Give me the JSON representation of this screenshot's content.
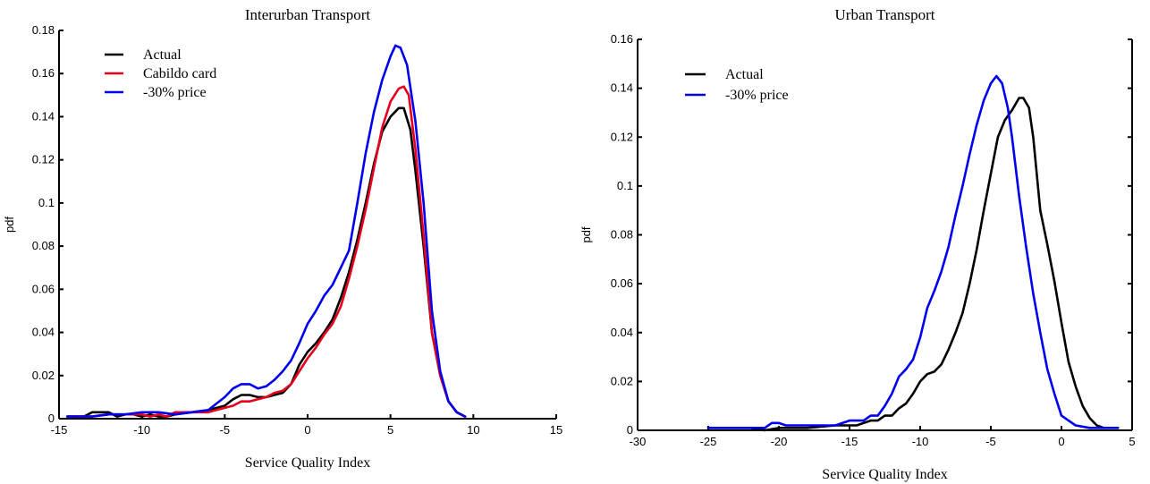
{
  "chart_data": [
    {
      "type": "line",
      "title": "Interurban Transport",
      "xlabel": "Service Quality Index",
      "ylabel": "pdf",
      "xlim": [
        -15,
        15
      ],
      "ylim": [
        0,
        0.18
      ],
      "x_ticks": [
        "-15",
        "-10",
        "-5",
        "0",
        "5",
        "10",
        "15"
      ],
      "y_ticks": [
        "0",
        "0.02",
        "0.04",
        "0.06",
        "0.08",
        "0.1",
        "0.12",
        "0.14",
        "0.16",
        "0.18"
      ],
      "grid": false,
      "legend_position": "top-left",
      "series": [
        {
          "name": "Actual",
          "color": "#000000",
          "points": [
            [
              -14.5,
              0.001
            ],
            [
              -13.5,
              0.001
            ],
            [
              -13,
              0.003
            ],
            [
              -12,
              0.003
            ],
            [
              -11.5,
              0.001
            ],
            [
              -11,
              0.002
            ],
            [
              -10.5,
              0.002
            ],
            [
              -10,
              0.001
            ],
            [
              -9.5,
              0.002
            ],
            [
              -9,
              0.001
            ],
            [
              -8.5,
              0.001
            ],
            [
              -8,
              0.002
            ],
            [
              -7,
              0.003
            ],
            [
              -6,
              0.004
            ],
            [
              -5,
              0.006
            ],
            [
              -4.5,
              0.009
            ],
            [
              -4,
              0.011
            ],
            [
              -3.5,
              0.011
            ],
            [
              -3,
              0.01
            ],
            [
              -2.5,
              0.01
            ],
            [
              -2,
              0.011
            ],
            [
              -1.5,
              0.012
            ],
            [
              -1,
              0.016
            ],
            [
              -0.5,
              0.025
            ],
            [
              0,
              0.031
            ],
            [
              0.5,
              0.035
            ],
            [
              1,
              0.04
            ],
            [
              1.5,
              0.046
            ],
            [
              2,
              0.056
            ],
            [
              2.5,
              0.068
            ],
            [
              3,
              0.083
            ],
            [
              3.5,
              0.1
            ],
            [
              4,
              0.118
            ],
            [
              4.5,
              0.133
            ],
            [
              5,
              0.14
            ],
            [
              5.5,
              0.144
            ],
            [
              5.8,
              0.144
            ],
            [
              6.2,
              0.134
            ],
            [
              6.5,
              0.115
            ],
            [
              7,
              0.08
            ],
            [
              7.5,
              0.04
            ],
            [
              8,
              0.02
            ],
            [
              8.5,
              0.008
            ],
            [
              9,
              0.003
            ],
            [
              9.5,
              0.001
            ]
          ]
        },
        {
          "name": "Cabildo card",
          "color": "#e8001c",
          "points": [
            [
              -14.5,
              0.001
            ],
            [
              -13,
              0.001
            ],
            [
              -12,
              0.002
            ],
            [
              -11,
              0.002
            ],
            [
              -10,
              0.002
            ],
            [
              -9.5,
              0.001
            ],
            [
              -9,
              0.002
            ],
            [
              -8.5,
              0.001
            ],
            [
              -8,
              0.003
            ],
            [
              -7,
              0.003
            ],
            [
              -6,
              0.003
            ],
            [
              -5,
              0.005
            ],
            [
              -4.5,
              0.006
            ],
            [
              -4,
              0.008
            ],
            [
              -3.5,
              0.008
            ],
            [
              -3,
              0.009
            ],
            [
              -2.5,
              0.01
            ],
            [
              -2,
              0.012
            ],
            [
              -1.5,
              0.013
            ],
            [
              -1,
              0.016
            ],
            [
              -0.5,
              0.022
            ],
            [
              0,
              0.028
            ],
            [
              0.5,
              0.033
            ],
            [
              1,
              0.039
            ],
            [
              1.5,
              0.044
            ],
            [
              2,
              0.052
            ],
            [
              2.5,
              0.065
            ],
            [
              3,
              0.08
            ],
            [
              3.5,
              0.097
            ],
            [
              4,
              0.116
            ],
            [
              4.5,
              0.135
            ],
            [
              5,
              0.147
            ],
            [
              5.5,
              0.153
            ],
            [
              5.8,
              0.154
            ],
            [
              6.1,
              0.15
            ],
            [
              6.5,
              0.125
            ],
            [
              7,
              0.085
            ],
            [
              7.5,
              0.04
            ],
            [
              8,
              0.02
            ],
            [
              8.5,
              0.008
            ],
            [
              9,
              0.003
            ],
            [
              9.5,
              0.001
            ]
          ]
        },
        {
          "name": "-30% price",
          "color": "#0000ee",
          "points": [
            [
              -14.5,
              0.001
            ],
            [
              -13,
              0.001
            ],
            [
              -12,
              0.002
            ],
            [
              -11,
              0.002
            ],
            [
              -10,
              0.003
            ],
            [
              -9,
              0.003
            ],
            [
              -8,
              0.002
            ],
            [
              -7,
              0.003
            ],
            [
              -6,
              0.004
            ],
            [
              -5.5,
              0.007
            ],
            [
              -5,
              0.01
            ],
            [
              -4.5,
              0.014
            ],
            [
              -4,
              0.016
            ],
            [
              -3.5,
              0.016
            ],
            [
              -3,
              0.014
            ],
            [
              -2.5,
              0.015
            ],
            [
              -2,
              0.018
            ],
            [
              -1.5,
              0.022
            ],
            [
              -1,
              0.027
            ],
            [
              -0.5,
              0.035
            ],
            [
              0,
              0.044
            ],
            [
              0.5,
              0.05
            ],
            [
              1,
              0.057
            ],
            [
              1.5,
              0.062
            ],
            [
              2,
              0.07
            ],
            [
              2.5,
              0.078
            ],
            [
              3,
              0.1
            ],
            [
              3.5,
              0.123
            ],
            [
              4,
              0.142
            ],
            [
              4.5,
              0.157
            ],
            [
              5,
              0.168
            ],
            [
              5.3,
              0.173
            ],
            [
              5.6,
              0.172
            ],
            [
              6,
              0.164
            ],
            [
              6.5,
              0.138
            ],
            [
              7,
              0.1
            ],
            [
              7.5,
              0.05
            ],
            [
              8,
              0.022
            ],
            [
              8.5,
              0.008
            ],
            [
              9,
              0.003
            ],
            [
              9.5,
              0.001
            ]
          ]
        }
      ]
    },
    {
      "type": "line",
      "title": "Urban Transport",
      "xlabel": "Service Quality Index",
      "ylabel": "pdf",
      "xlim": [
        -30,
        5
      ],
      "ylim": [
        0,
        0.16
      ],
      "x_ticks": [
        "-30",
        "-25",
        "-20",
        "-15",
        "-10",
        "-5",
        "0",
        "5"
      ],
      "y_ticks": [
        "0",
        "0.02",
        "0.04",
        "0.06",
        "0.08",
        "0.1",
        "0.12",
        "0.14",
        "0.16"
      ],
      "grid": false,
      "legend_position": "top-left",
      "series": [
        {
          "name": "Actual",
          "color": "#000000",
          "points": [
            [
              -25,
              0.001
            ],
            [
              -22,
              0.001
            ],
            [
              -21,
              0
            ],
            [
              -20,
              0.001
            ],
            [
              -18,
              0.001
            ],
            [
              -16,
              0.002
            ],
            [
              -14.5,
              0.002
            ],
            [
              -13.5,
              0.004
            ],
            [
              -13,
              0.004
            ],
            [
              -12.5,
              0.006
            ],
            [
              -12,
              0.006
            ],
            [
              -11.5,
              0.009
            ],
            [
              -11,
              0.011
            ],
            [
              -10.5,
              0.015
            ],
            [
              -10,
              0.02
            ],
            [
              -9.5,
              0.023
            ],
            [
              -9,
              0.024
            ],
            [
              -8.5,
              0.027
            ],
            [
              -8,
              0.033
            ],
            [
              -7.5,
              0.04
            ],
            [
              -7,
              0.048
            ],
            [
              -6.5,
              0.06
            ],
            [
              -6,
              0.074
            ],
            [
              -5.5,
              0.09
            ],
            [
              -5,
              0.105
            ],
            [
              -4.5,
              0.12
            ],
            [
              -4,
              0.127
            ],
            [
              -3.5,
              0.131
            ],
            [
              -3,
              0.136
            ],
            [
              -2.7,
              0.136
            ],
            [
              -2.3,
              0.132
            ],
            [
              -2,
              0.12
            ],
            [
              -1.5,
              0.09
            ],
            [
              -1,
              0.076
            ],
            [
              -0.5,
              0.061
            ],
            [
              0,
              0.044
            ],
            [
              0.5,
              0.028
            ],
            [
              1,
              0.018
            ],
            [
              1.5,
              0.01
            ],
            [
              2,
              0.005
            ],
            [
              2.5,
              0.002
            ],
            [
              3,
              0.001
            ]
          ]
        },
        {
          "name": "-30% price",
          "color": "#0000ee",
          "points": [
            [
              -25,
              0.001
            ],
            [
              -22,
              0.001
            ],
            [
              -21,
              0.001
            ],
            [
              -20.5,
              0.003
            ],
            [
              -20,
              0.003
            ],
            [
              -19.5,
              0.002
            ],
            [
              -18,
              0.002
            ],
            [
              -16,
              0.002
            ],
            [
              -15,
              0.004
            ],
            [
              -14,
              0.004
            ],
            [
              -13.5,
              0.006
            ],
            [
              -13,
              0.006
            ],
            [
              -12.5,
              0.01
            ],
            [
              -12,
              0.015
            ],
            [
              -11.5,
              0.022
            ],
            [
              -11,
              0.025
            ],
            [
              -10.5,
              0.029
            ],
            [
              -10,
              0.038
            ],
            [
              -9.5,
              0.05
            ],
            [
              -9,
              0.057
            ],
            [
              -8.5,
              0.065
            ],
            [
              -8,
              0.075
            ],
            [
              -7.5,
              0.088
            ],
            [
              -7,
              0.1
            ],
            [
              -6.5,
              0.113
            ],
            [
              -6,
              0.125
            ],
            [
              -5.5,
              0.135
            ],
            [
              -5,
              0.142
            ],
            [
              -4.6,
              0.145
            ],
            [
              -4.2,
              0.142
            ],
            [
              -3.8,
              0.132
            ],
            [
              -3.5,
              0.12
            ],
            [
              -3,
              0.096
            ],
            [
              -2.5,
              0.075
            ],
            [
              -2,
              0.056
            ],
            [
              -1.5,
              0.04
            ],
            [
              -1,
              0.025
            ],
            [
              -0.5,
              0.015
            ],
            [
              0,
              0.006
            ],
            [
              0.5,
              0.004
            ],
            [
              1,
              0.002
            ],
            [
              2,
              0.001
            ],
            [
              3,
              0.001
            ],
            [
              4,
              0.001
            ]
          ]
        }
      ]
    }
  ]
}
